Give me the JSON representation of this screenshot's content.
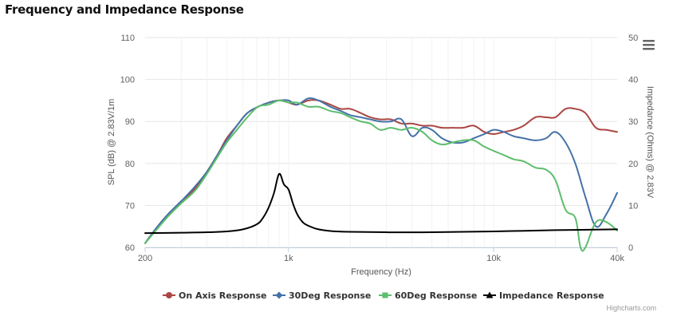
{
  "title": "Frequency and Impedance Response",
  "credits": "Highcharts.com",
  "menu_icon": "hamburger-menu-icon",
  "chart_data": {
    "type": "line",
    "xlabel": "Frequency (Hz)",
    "x_scale": "log",
    "xlim": [
      200,
      40000
    ],
    "x_ticks": [
      {
        "value": 200,
        "label": "200"
      },
      {
        "value": 1000,
        "label": "1k"
      },
      {
        "value": 10000,
        "label": "10k"
      },
      {
        "value": 40000,
        "label": "40k"
      }
    ],
    "ylabel_left": "SPL (dB) @ 2.83V/1m",
    "ylim_left": [
      60,
      110
    ],
    "y_ticks_left": [
      "60",
      "70",
      "80",
      "90",
      "100",
      "110"
    ],
    "ylabel_right": "Impedance (Ohms) @ 2.83V",
    "ylim_right": [
      0,
      50
    ],
    "y_ticks_right": [
      "0",
      "10",
      "20",
      "30",
      "40",
      "50"
    ],
    "grid": true,
    "legend_position": "bottom-center",
    "series": [
      {
        "name": "On Axis Response",
        "color": "#AA4643",
        "marker": "circle",
        "axis": "left",
        "x": [
          200,
          230,
          260,
          300,
          350,
          400,
          450,
          500,
          560,
          630,
          710,
          800,
          900,
          1000,
          1100,
          1250,
          1400,
          1600,
          1800,
          2000,
          2250,
          2500,
          2800,
          3150,
          3550,
          4000,
          4500,
          5000,
          5600,
          6300,
          7100,
          8000,
          9000,
          10000,
          11200,
          12500,
          14000,
          16000,
          18000,
          20000,
          22400,
          25000,
          28000,
          31500,
          35500,
          40000
        ],
        "y": [
          61,
          65,
          68,
          71,
          74,
          78,
          82,
          86,
          89,
          92,
          93.5,
          94.5,
          95,
          94.5,
          94,
          95,
          95,
          94,
          93,
          93,
          92,
          91,
          90.5,
          90.5,
          89.5,
          89.5,
          89,
          89,
          88.5,
          88.5,
          88.5,
          89,
          87.5,
          87,
          87.5,
          88,
          89,
          91,
          91,
          91,
          93,
          93,
          92,
          88.5,
          88,
          87.5
        ]
      },
      {
        "name": "30Deg Response",
        "color": "#4572A7",
        "marker": "diamond",
        "axis": "left",
        "x": [
          200,
          230,
          260,
          300,
          350,
          400,
          450,
          500,
          560,
          630,
          710,
          800,
          900,
          1000,
          1100,
          1250,
          1400,
          1600,
          1800,
          2000,
          2250,
          2500,
          2800,
          3150,
          3550,
          4000,
          4500,
          5000,
          5600,
          6300,
          7100,
          8000,
          9000,
          10000,
          11200,
          12500,
          14000,
          16000,
          18000,
          20000,
          22400,
          25000,
          28000,
          31500,
          35500,
          40000
        ],
        "y": [
          61,
          65,
          68,
          71,
          74.5,
          78,
          82,
          85.5,
          89,
          92,
          93.5,
          94.5,
          95,
          95,
          94,
          95.5,
          95,
          93.5,
          92.5,
          91.5,
          91,
          90.5,
          90,
          90,
          90.5,
          86.5,
          88.5,
          88,
          86,
          85,
          85,
          86,
          87,
          88,
          87.5,
          86.5,
          86,
          85.5,
          86,
          87.5,
          85,
          80,
          72,
          65,
          68,
          73
        ]
      },
      {
        "name": "60Deg Response",
        "color": "#5DBE6C",
        "marker": "square",
        "axis": "left",
        "x": [
          200,
          230,
          260,
          300,
          350,
          400,
          450,
          500,
          560,
          630,
          710,
          800,
          900,
          1000,
          1100,
          1250,
          1400,
          1600,
          1800,
          2000,
          2250,
          2500,
          2800,
          3150,
          3550,
          4000,
          4500,
          5000,
          5600,
          6300,
          7100,
          8000,
          9000,
          10000,
          11200,
          12500,
          14000,
          16000,
          18000,
          20000,
          22400,
          25000,
          26500,
          28000,
          31500,
          35500,
          40000
        ],
        "y": [
          61,
          64.5,
          67.5,
          70.5,
          73.5,
          77.5,
          81.5,
          85,
          88,
          91,
          93.5,
          94,
          95,
          94.5,
          94.5,
          93.5,
          93.5,
          92.5,
          92,
          91,
          90,
          89.5,
          88,
          88.5,
          88,
          88.5,
          87.5,
          85.5,
          84.5,
          85,
          85.5,
          85.5,
          84,
          83,
          82,
          81,
          80.5,
          79,
          78.5,
          76,
          69,
          67,
          60,
          60,
          66,
          66,
          64
        ]
      },
      {
        "name": "Impedance Response",
        "color": "#000000",
        "marker": "triangle",
        "axis": "right",
        "x": [
          200,
          300,
          400,
          500,
          600,
          700,
          750,
          800,
          850,
          900,
          950,
          1000,
          1050,
          1100,
          1150,
          1200,
          1300,
          1400,
          1600,
          2000,
          3000,
          5000,
          10000,
          20000,
          40000
        ],
        "y": [
          3.4,
          3.5,
          3.6,
          3.8,
          4.3,
          5.5,
          7,
          9.5,
          13,
          17.5,
          15,
          13.8,
          10.5,
          8,
          6.5,
          5.6,
          4.8,
          4.3,
          3.9,
          3.7,
          3.6,
          3.6,
          3.8,
          4.1,
          4.3
        ]
      }
    ]
  }
}
